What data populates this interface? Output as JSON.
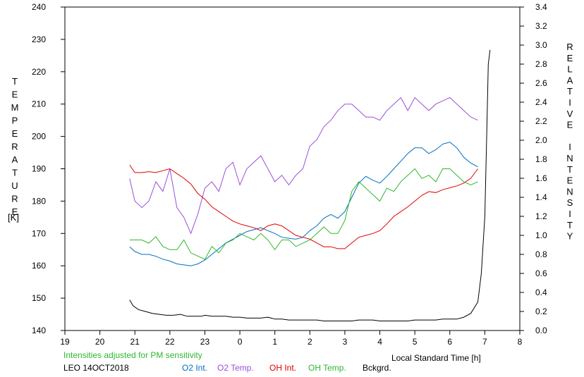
{
  "chart_data": {
    "type": "line",
    "xlabel": "Local Standard Time [h]",
    "ylabel_left_letters": [
      "T",
      "E",
      "M",
      "P",
      "E",
      "R",
      "A",
      "T",
      "U",
      "R",
      "E"
    ],
    "ylabel_left_unit": "[K]",
    "ylabel_right_letters": [
      "R",
      "E",
      "L",
      "A",
      "T",
      "I",
      "V",
      "E",
      "",
      "I",
      "N",
      "T",
      "E",
      "N",
      "S",
      "I",
      "T",
      "Y"
    ],
    "x_ticks": [
      "19",
      "20",
      "21",
      "22",
      "23",
      "0",
      "1",
      "2",
      "3",
      "4",
      "5",
      "6",
      "7",
      "8"
    ],
    "y_left_ticks": [
      "140",
      "150",
      "160",
      "170",
      "180",
      "190",
      "200",
      "210",
      "220",
      "230",
      "240"
    ],
    "y_right_ticks": [
      "0.0",
      "0.2",
      "0.4",
      "0.6",
      "0.8",
      "1.0",
      "1.2",
      "1.4",
      "1.6",
      "1.8",
      "2.0",
      "2.2",
      "2.4",
      "2.6",
      "2.8",
      "3.0",
      "3.2",
      "3.4"
    ],
    "xlim": [
      19,
      32
    ],
    "ylim_left": [
      140,
      240
    ],
    "ylim_right": [
      0,
      3.4
    ],
    "grid": false,
    "notes": {
      "sensitivity": "Intensities adjusted for PM sensitivity",
      "station_date": "LEO 14OCT2018"
    },
    "legend_position": "bottom",
    "series": [
      {
        "name": "O2 Int.",
        "axis": "right",
        "color": "#0070c0",
        "x": [
          20.85,
          21.0,
          21.2,
          21.4,
          21.6,
          21.8,
          22.0,
          22.2,
          22.4,
          22.6,
          22.8,
          23.0,
          23.2,
          23.4,
          23.6,
          23.8,
          24.0,
          24.2,
          24.4,
          24.6,
          24.8,
          25.0,
          25.2,
          25.4,
          25.6,
          25.8,
          26.0,
          26.2,
          26.4,
          26.6,
          26.8,
          27.0,
          27.2,
          27.4,
          27.6,
          27.8,
          28.0,
          28.2,
          28.4,
          28.6,
          28.8,
          29.0,
          29.2,
          29.4,
          29.6,
          29.8,
          30.0,
          30.2,
          30.4,
          30.6,
          30.8
        ],
        "y": [
          0.88,
          0.83,
          0.8,
          0.8,
          0.78,
          0.75,
          0.73,
          0.7,
          0.69,
          0.68,
          0.7,
          0.74,
          0.8,
          0.86,
          0.92,
          0.96,
          1.0,
          1.04,
          1.06,
          1.08,
          1.05,
          1.02,
          0.98,
          0.97,
          0.96,
          0.98,
          1.05,
          1.1,
          1.18,
          1.22,
          1.18,
          1.25,
          1.4,
          1.55,
          1.62,
          1.58,
          1.55,
          1.62,
          1.7,
          1.78,
          1.86,
          1.92,
          1.92,
          1.86,
          1.9,
          1.96,
          1.98,
          1.92,
          1.82,
          1.76,
          1.72
        ]
      },
      {
        "name": "O2 Temp.",
        "axis": "left",
        "color": "#9b4fd8",
        "x": [
          20.85,
          21.0,
          21.2,
          21.4,
          21.6,
          21.8,
          22.0,
          22.2,
          22.4,
          22.6,
          22.8,
          23.0,
          23.2,
          23.4,
          23.6,
          23.8,
          24.0,
          24.2,
          24.4,
          24.6,
          24.8,
          25.0,
          25.2,
          25.4,
          25.6,
          25.8,
          26.0,
          26.2,
          26.4,
          26.6,
          26.8,
          27.0,
          27.2,
          27.4,
          27.6,
          27.8,
          28.0,
          28.2,
          28.4,
          28.6,
          28.8,
          29.0,
          29.2,
          29.4,
          29.6,
          29.8,
          30.0,
          30.2,
          30.4,
          30.6,
          30.8
        ],
        "y": [
          187,
          180,
          178,
          180,
          186,
          183,
          190,
          178,
          175,
          170,
          176,
          184,
          186,
          183,
          190,
          192,
          185,
          190,
          192,
          194,
          190,
          186,
          188,
          185,
          188,
          190,
          197,
          199,
          203,
          205,
          208,
          210,
          210,
          208,
          206,
          206,
          205,
          208,
          210,
          212,
          208,
          212,
          210,
          208,
          210,
          211,
          212,
          210,
          208,
          206,
          205
        ]
      },
      {
        "name": "OH Int.",
        "axis": "right",
        "color": "#e00000",
        "x": [
          20.85,
          21.0,
          21.2,
          21.4,
          21.6,
          21.8,
          22.0,
          22.2,
          22.4,
          22.6,
          22.8,
          23.0,
          23.2,
          23.4,
          23.6,
          23.8,
          24.0,
          24.2,
          24.4,
          24.6,
          24.8,
          25.0,
          25.2,
          25.4,
          25.6,
          25.8,
          26.0,
          26.2,
          26.4,
          26.6,
          26.8,
          27.0,
          27.2,
          27.4,
          27.6,
          27.8,
          28.0,
          28.2,
          28.4,
          28.6,
          28.8,
          29.0,
          29.2,
          29.4,
          29.6,
          29.8,
          30.0,
          30.2,
          30.4,
          30.6,
          30.8
        ],
        "y": [
          1.74,
          1.66,
          1.66,
          1.67,
          1.66,
          1.68,
          1.7,
          1.65,
          1.6,
          1.54,
          1.44,
          1.38,
          1.3,
          1.25,
          1.2,
          1.15,
          1.12,
          1.1,
          1.08,
          1.05,
          1.1,
          1.12,
          1.1,
          1.05,
          1.0,
          0.98,
          0.96,
          0.92,
          0.88,
          0.88,
          0.86,
          0.86,
          0.92,
          0.98,
          1.0,
          1.02,
          1.05,
          1.12,
          1.2,
          1.25,
          1.3,
          1.36,
          1.42,
          1.46,
          1.45,
          1.48,
          1.5,
          1.52,
          1.55,
          1.6,
          1.7
        ]
      },
      {
        "name": "OH Temp.",
        "axis": "left",
        "color": "#2eb82e",
        "x": [
          20.85,
          21.0,
          21.2,
          21.4,
          21.6,
          21.8,
          22.0,
          22.2,
          22.4,
          22.6,
          22.8,
          23.0,
          23.2,
          23.4,
          23.6,
          23.8,
          24.0,
          24.2,
          24.4,
          24.6,
          24.8,
          25.0,
          25.2,
          25.4,
          25.6,
          25.8,
          26.0,
          26.2,
          26.4,
          26.6,
          26.8,
          27.0,
          27.2,
          27.4,
          27.6,
          27.8,
          28.0,
          28.2,
          28.4,
          28.6,
          28.8,
          29.0,
          29.2,
          29.4,
          29.6,
          29.8,
          30.0,
          30.2,
          30.4,
          30.6,
          30.8
        ],
        "y": [
          168,
          168,
          168,
          167,
          169,
          166,
          165,
          165,
          168,
          164,
          163,
          162,
          166,
          164,
          167,
          168,
          170,
          169,
          168,
          170,
          168,
          165,
          168,
          168,
          166,
          167,
          168,
          170,
          172,
          170,
          170,
          174,
          183,
          186,
          184,
          182,
          180,
          184,
          183,
          186,
          188,
          190,
          187,
          188,
          186,
          190,
          190,
          188,
          186,
          185,
          186
        ]
      },
      {
        "name": "Bckgrd.",
        "axis": "right",
        "color": "#000000",
        "x": [
          20.85,
          20.95,
          21.1,
          21.3,
          21.5,
          21.7,
          21.9,
          22.1,
          22.3,
          22.5,
          22.7,
          22.9,
          23.0,
          23.2,
          23.4,
          23.6,
          23.8,
          24.0,
          24.2,
          24.4,
          24.6,
          24.8,
          25.0,
          25.2,
          25.4,
          25.6,
          25.8,
          26.0,
          26.2,
          26.4,
          26.6,
          26.8,
          27.0,
          27.2,
          27.4,
          27.6,
          27.8,
          28.0,
          28.2,
          28.4,
          28.6,
          28.8,
          29.0,
          29.2,
          29.4,
          29.6,
          29.8,
          30.0,
          30.2,
          30.4,
          30.6,
          30.8,
          30.9,
          31.0,
          31.05,
          31.1,
          31.15
        ],
        "y": [
          0.32,
          0.26,
          0.22,
          0.2,
          0.18,
          0.17,
          0.16,
          0.16,
          0.17,
          0.15,
          0.15,
          0.15,
          0.16,
          0.15,
          0.15,
          0.15,
          0.14,
          0.14,
          0.13,
          0.13,
          0.13,
          0.14,
          0.12,
          0.12,
          0.11,
          0.11,
          0.11,
          0.11,
          0.11,
          0.1,
          0.1,
          0.1,
          0.1,
          0.1,
          0.11,
          0.11,
          0.11,
          0.1,
          0.1,
          0.1,
          0.1,
          0.1,
          0.11,
          0.11,
          0.11,
          0.11,
          0.12,
          0.12,
          0.12,
          0.14,
          0.18,
          0.3,
          0.6,
          1.2,
          2.0,
          2.8,
          2.95
        ]
      }
    ]
  }
}
